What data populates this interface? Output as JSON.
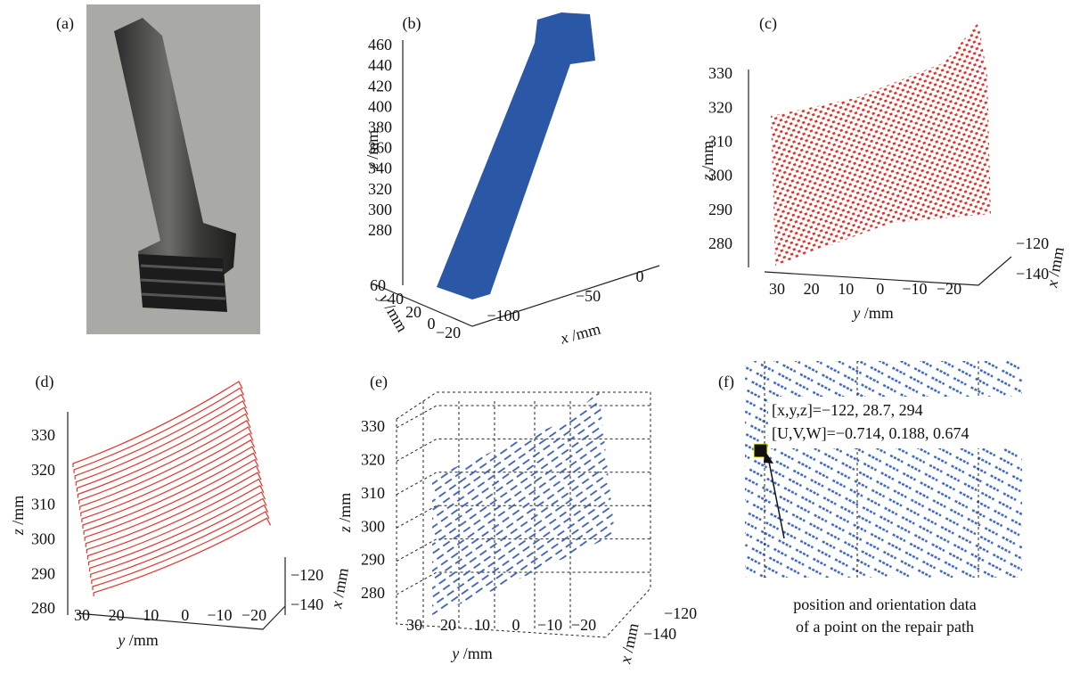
{
  "panels": [
    {
      "label": "(a)"
    },
    {
      "label": "(b)",
      "axes": {
        "z": {
          "var": "z",
          "unit": " /mm",
          "ticks": [
            "460",
            "440",
            "420",
            "400",
            "380",
            "360",
            "340",
            "320",
            "300",
            "280"
          ]
        },
        "y": {
          "var": "y",
          "unit": " /mm",
          "ticks": [
            "60",
            "40",
            "20",
            "0",
            "−20"
          ]
        },
        "x": {
          "var": "x",
          "unit": " /mm",
          "ticks": [
            "−100",
            "−50",
            "0"
          ]
        }
      }
    },
    {
      "label": "(c)",
      "axes": {
        "z": {
          "var": "z",
          "unit": " /mm",
          "ticks": [
            "330",
            "320",
            "310",
            "300",
            "290",
            "280"
          ]
        },
        "y": {
          "var": "y",
          "unit": " /mm",
          "ticks": [
            "30",
            "20",
            "10",
            "0",
            "−10",
            "−20"
          ]
        },
        "x": {
          "var": "x",
          "unit": " /mm",
          "ticks": [
            "−120",
            "−140"
          ]
        }
      }
    },
    {
      "label": "(d)",
      "axes": {
        "z": {
          "var": "z",
          "unit": " /mm",
          "ticks": [
            "330",
            "320",
            "310",
            "300",
            "290",
            "280"
          ]
        },
        "y": {
          "var": "y",
          "unit": " /mm",
          "ticks": [
            "30",
            "20",
            "10",
            "0",
            "−10",
            "−20"
          ]
        },
        "x": {
          "var": "x",
          "unit": " /mm",
          "ticks": [
            "−120",
            "−140"
          ]
        }
      }
    },
    {
      "label": "(e)",
      "axes": {
        "z": {
          "var": "z",
          "unit": " /mm",
          "ticks": [
            "330",
            "320",
            "310",
            "300",
            "290",
            "280"
          ]
        },
        "y": {
          "var": "y",
          "unit": " /mm",
          "ticks": [
            "30",
            "20",
            "10",
            "0",
            "−10",
            "−20"
          ]
        },
        "x": {
          "var": "x",
          "unit": " /mm",
          "ticks": [
            "−120",
            "−140"
          ]
        }
      }
    },
    {
      "label": "(f)",
      "annotation": [
        "[x,y,z]=−122, 28.7, 294",
        "[U,V,W]=−0.714, 0.188, 0.674"
      ],
      "caption": [
        "position and orientation data",
        "of a point on the repair path"
      ]
    }
  ]
}
